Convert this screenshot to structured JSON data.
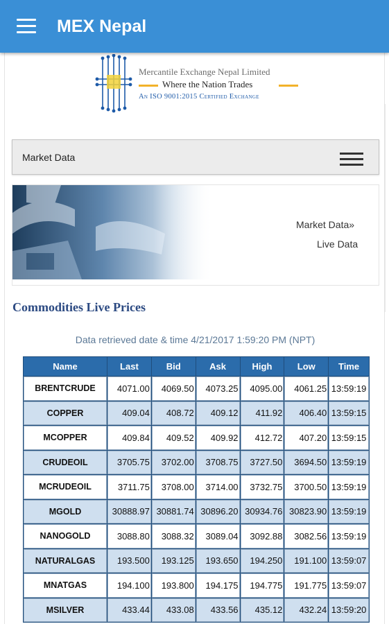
{
  "app": {
    "title": "MEX Nepal"
  },
  "logo": {
    "company": "Mercantile Exchange Nepal Limited",
    "tagline": "Where the Nation Trades",
    "certification": "An ISO 9001:2015 Certified Exchange"
  },
  "market_bar": {
    "label": "Market Data"
  },
  "breadcrumb": {
    "item1": "Market Data»",
    "item2": "Live Data"
  },
  "section": {
    "title": "Commodities Live Prices"
  },
  "retrieved": {
    "prefix": "Data retrieved date & time ",
    "datetime": "4/21/2017 1:59:20 PM",
    "zone": " (NPT)"
  },
  "table": {
    "headers": [
      "Name",
      "Last",
      "Bid",
      "Ask",
      "High",
      "Low",
      "Time"
    ],
    "rows": [
      [
        "BRENTCRUDE",
        "4071.00",
        "4069.50",
        "4073.25",
        "4095.00",
        "4061.25",
        "13:59:19"
      ],
      [
        "COPPER",
        "409.04",
        "408.72",
        "409.12",
        "411.92",
        "406.40",
        "13:59:15"
      ],
      [
        "MCOPPER",
        "409.84",
        "409.52",
        "409.92",
        "412.72",
        "407.20",
        "13:59:15"
      ],
      [
        "CRUDEOIL",
        "3705.75",
        "3702.00",
        "3708.75",
        "3727.50",
        "3694.50",
        "13:59:19"
      ],
      [
        "MCRUDEOIL",
        "3711.75",
        "3708.00",
        "3714.00",
        "3732.75",
        "3700.50",
        "13:59:19"
      ],
      [
        "MGOLD",
        "30888.97",
        "30881.74",
        "30896.20",
        "30934.76",
        "30823.90",
        "13:59:19"
      ],
      [
        "NANOGOLD",
        "3088.80",
        "3088.32",
        "3089.04",
        "3092.88",
        "3082.56",
        "13:59:19"
      ],
      [
        "NATURALGAS",
        "193.500",
        "193.125",
        "193.650",
        "194.250",
        "191.100",
        "13:59:07"
      ],
      [
        "MNATGAS",
        "194.100",
        "193.800",
        "194.175",
        "194.775",
        "191.775",
        "13:59:07"
      ],
      [
        "MSILVER",
        "433.44",
        "433.08",
        "433.56",
        "435.12",
        "432.24",
        "13:59:20"
      ]
    ]
  }
}
